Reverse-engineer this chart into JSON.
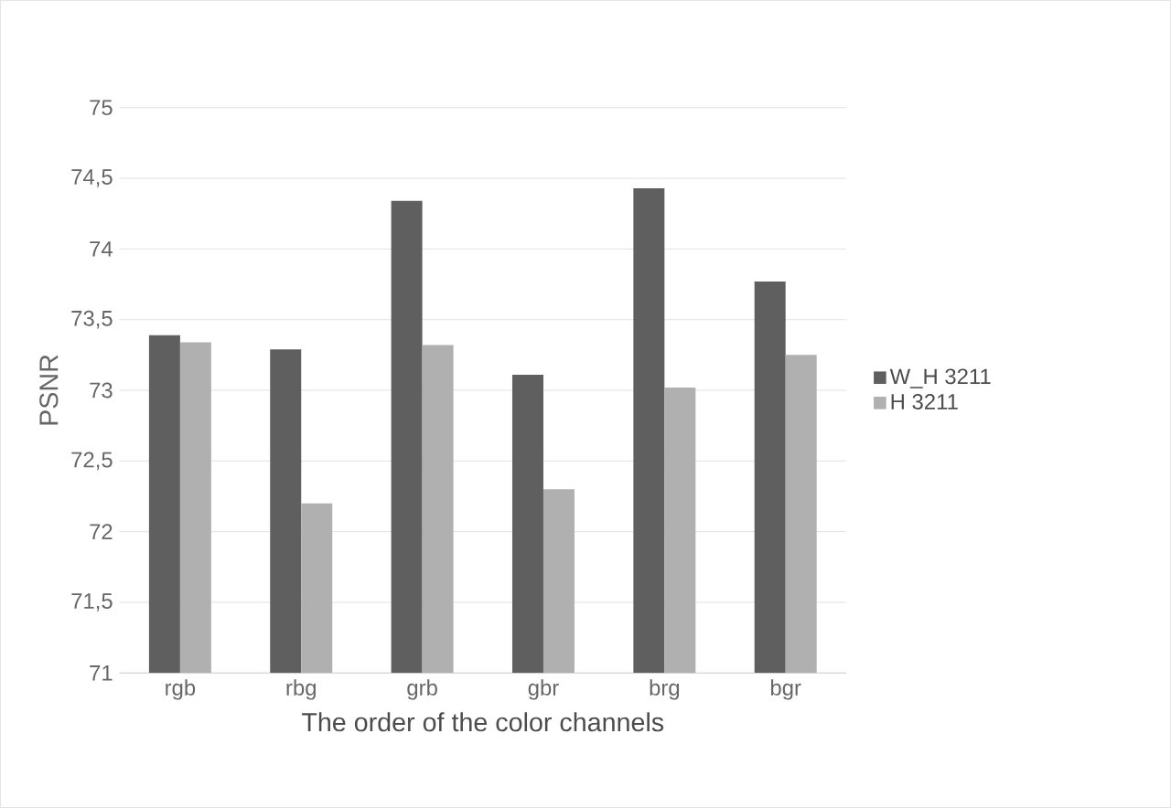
{
  "chart_data": {
    "type": "bar",
    "xlabel": "The order of the color channels",
    "ylabel": "PSNR",
    "categories": [
      "rgb",
      "rbg",
      "grb",
      "gbr",
      "brg",
      "bgr"
    ],
    "series": [
      {
        "name": "W_H 3211",
        "color": "#5f5f5f",
        "values": [
          73.39,
          73.29,
          74.34,
          73.11,
          74.43,
          73.77
        ]
      },
      {
        "name": "H 3211",
        "color": "#b0b0b0",
        "values": [
          73.34,
          72.2,
          73.32,
          72.3,
          73.02,
          73.25
        ]
      }
    ],
    "ylim": [
      71,
      75
    ],
    "yticks": [
      71,
      {
        "value": 71.5,
        "label": "71,5"
      },
      72,
      {
        "value": 72.5,
        "label": "72,5"
      },
      73,
      {
        "value": 73.5,
        "label": "73,5"
      },
      74,
      {
        "value": 74.5,
        "label": "74,5"
      },
      75
    ],
    "grid": "y",
    "legend": "right"
  }
}
